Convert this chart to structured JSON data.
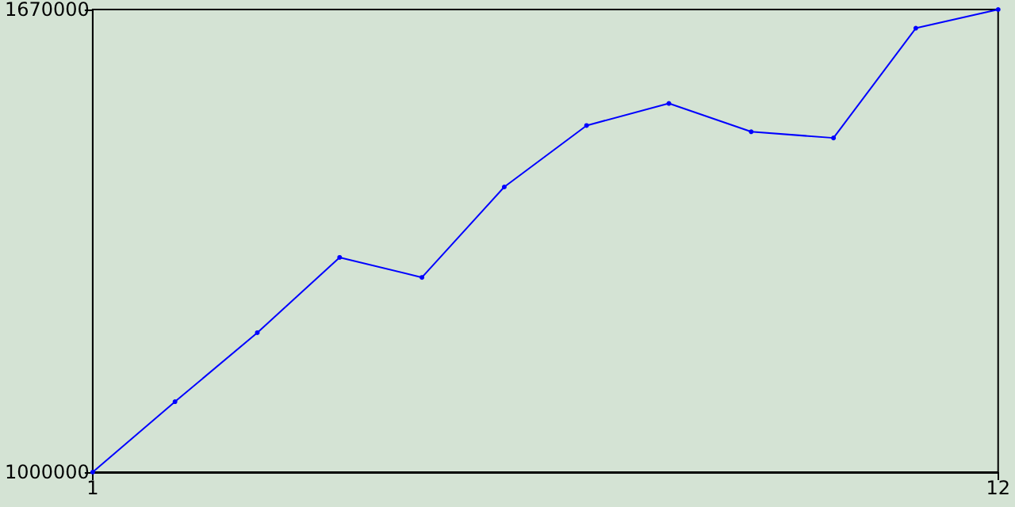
{
  "chart_data": {
    "type": "line",
    "x": [
      1,
      2,
      3,
      4,
      5,
      6,
      7,
      8,
      9,
      10,
      11,
      12
    ],
    "series": [
      {
        "color": "#0000ff",
        "values": [
          1000000,
          1102000,
          1202000,
          1311000,
          1282000,
          1413000,
          1502000,
          1534000,
          1493000,
          1484000,
          1643000,
          1670000
        ]
      }
    ],
    "xlim": [
      1,
      12
    ],
    "xticks": [
      1,
      12
    ],
    "ylim": [
      1000000,
      1670000
    ],
    "yticks": [
      1000000,
      1670000
    ],
    "grid": false,
    "marker": "circle",
    "line_style": "solid"
  }
}
